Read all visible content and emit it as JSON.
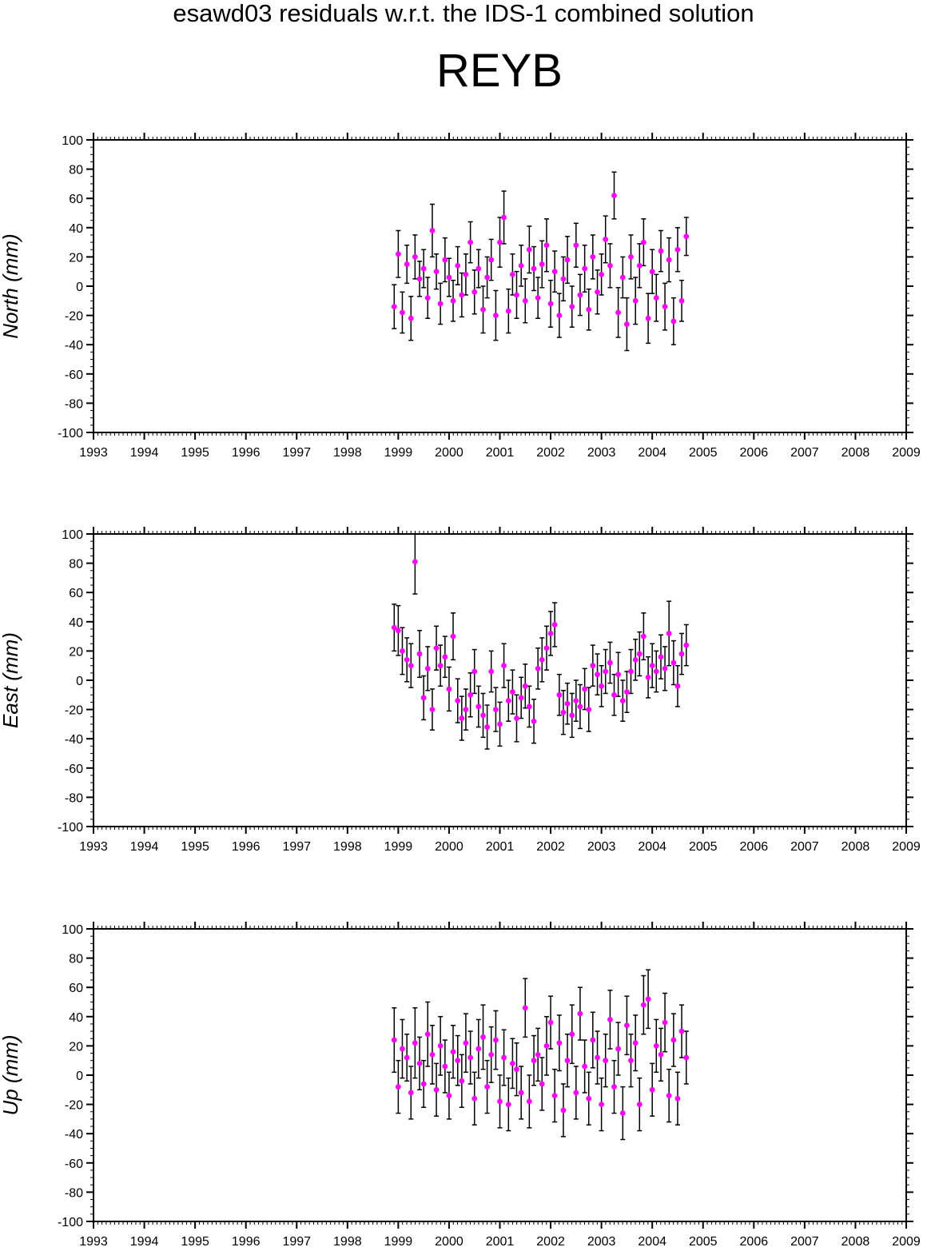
{
  "figure": {
    "suptitle": "esawd03 residuals w.r.t. the IDS-1 combined solution",
    "station": "REYB"
  },
  "colors": {
    "point": "#ff00ff",
    "errorbar": "#000000",
    "axis": "#000000",
    "background": "#ffffff"
  },
  "chart_data": [
    {
      "type": "scatter",
      "panel": "north",
      "title": "",
      "xlabel": "",
      "ylabel": "North (mm)",
      "xlim": [
        1993,
        2009
      ],
      "ylim": [
        -100,
        100
      ],
      "x_ticks": [
        1993,
        1994,
        1995,
        1996,
        1997,
        1998,
        1999,
        2000,
        2001,
        2002,
        2003,
        2004,
        2005,
        2006,
        2007,
        2008,
        2009
      ],
      "y_ticks": [
        100,
        80,
        60,
        40,
        20,
        0,
        -20,
        -40,
        -60,
        -80,
        -100
      ],
      "grid": false,
      "error_bars": true,
      "x": [
        1998.92,
        1999.0,
        1999.08,
        1999.17,
        1999.25,
        1999.33,
        1999.42,
        1999.5,
        1999.58,
        1999.67,
        1999.75,
        1999.83,
        1999.92,
        2000.0,
        2000.08,
        2000.17,
        2000.25,
        2000.33,
        2000.42,
        2000.5,
        2000.58,
        2000.67,
        2000.75,
        2000.83,
        2000.92,
        2001.0,
        2001.08,
        2001.17,
        2001.25,
        2001.33,
        2001.42,
        2001.5,
        2001.58,
        2001.67,
        2001.75,
        2001.83,
        2001.92,
        2002.0,
        2002.08,
        2002.17,
        2002.25,
        2002.33,
        2002.42,
        2002.5,
        2002.58,
        2002.67,
        2002.75,
        2002.83,
        2002.92,
        2003.0,
        2003.08,
        2003.17,
        2003.25,
        2003.33,
        2003.42,
        2003.5,
        2003.58,
        2003.67,
        2003.75,
        2003.83,
        2003.92,
        2004.0,
        2004.08,
        2004.17,
        2004.25,
        2004.33,
        2004.42,
        2004.5,
        2004.58,
        2004.67
      ],
      "y": [
        -14,
        22,
        -18,
        15,
        -22,
        20,
        5,
        12,
        -8,
        38,
        10,
        -12,
        18,
        6,
        -10,
        14,
        -6,
        8,
        30,
        -4,
        12,
        -16,
        6,
        18,
        -20,
        30,
        47,
        -17,
        8,
        -6,
        14,
        -10,
        25,
        12,
        -8,
        15,
        28,
        -12,
        10,
        -20,
        5,
        18,
        -14,
        28,
        -6,
        12,
        -16,
        20,
        -4,
        8,
        32,
        14,
        62,
        -18,
        6,
        -26,
        20,
        -10,
        14,
        30,
        -22,
        10,
        -8,
        24,
        -14,
        18,
        -24,
        25,
        -10,
        34
      ],
      "err": [
        15,
        16,
        14,
        13,
        15,
        15,
        12,
        13,
        14,
        18,
        12,
        14,
        15,
        13,
        14,
        13,
        15,
        14,
        14,
        15,
        13,
        16,
        14,
        14,
        17,
        17,
        18,
        15,
        14,
        16,
        14,
        15,
        16,
        15,
        14,
        16,
        18,
        16,
        14,
        15,
        15,
        16,
        14,
        15,
        14,
        16,
        14,
        15,
        15,
        14,
        16,
        15,
        16,
        17,
        14,
        18,
        15,
        16,
        15,
        16,
        17,
        15,
        16,
        14,
        16,
        15,
        16,
        15,
        14,
        13
      ]
    },
    {
      "type": "scatter",
      "panel": "east",
      "title": "",
      "xlabel": "",
      "ylabel": "East (mm)",
      "xlim": [
        1993,
        2009
      ],
      "ylim": [
        -100,
        100
      ],
      "x_ticks": [
        1993,
        1994,
        1995,
        1996,
        1997,
        1998,
        1999,
        2000,
        2001,
        2002,
        2003,
        2004,
        2005,
        2006,
        2007,
        2008,
        2009
      ],
      "y_ticks": [
        100,
        80,
        60,
        40,
        20,
        0,
        -20,
        -40,
        -60,
        -80,
        -100
      ],
      "grid": false,
      "error_bars": true,
      "x": [
        1998.92,
        1999.0,
        1999.08,
        1999.17,
        1999.25,
        1999.33,
        1999.42,
        1999.5,
        1999.58,
        1999.67,
        1999.75,
        1999.83,
        1999.92,
        2000.0,
        2000.08,
        2000.17,
        2000.25,
        2000.33,
        2000.42,
        2000.5,
        2000.58,
        2000.67,
        2000.75,
        2000.83,
        2000.92,
        2001.0,
        2001.08,
        2001.17,
        2001.25,
        2001.33,
        2001.42,
        2001.5,
        2001.58,
        2001.67,
        2001.75,
        2001.83,
        2001.92,
        2002.0,
        2002.08,
        2002.17,
        2002.25,
        2002.33,
        2002.42,
        2002.5,
        2002.58,
        2002.67,
        2002.75,
        2002.83,
        2002.92,
        2003.0,
        2003.08,
        2003.17,
        2003.25,
        2003.33,
        2003.42,
        2003.5,
        2003.58,
        2003.67,
        2003.75,
        2003.83,
        2003.92,
        2004.0,
        2004.08,
        2004.17,
        2004.25,
        2004.33,
        2004.42,
        2004.5,
        2004.58,
        2004.67
      ],
      "y": [
        36,
        34,
        20,
        14,
        10,
        81,
        18,
        -12,
        8,
        -20,
        22,
        10,
        16,
        -6,
        30,
        -14,
        -26,
        -20,
        -10,
        6,
        -18,
        -24,
        -32,
        6,
        -20,
        -30,
        10,
        -14,
        -8,
        -26,
        -12,
        -4,
        -18,
        -28,
        8,
        14,
        22,
        32,
        38,
        -10,
        -22,
        -16,
        -24,
        -14,
        -18,
        -6,
        -20,
        10,
        4,
        -4,
        6,
        12,
        -10,
        4,
        -14,
        -8,
        6,
        14,
        18,
        30,
        2,
        10,
        6,
        16,
        8,
        32,
        12,
        -4,
        18,
        24
      ],
      "err": [
        16,
        17,
        16,
        15,
        15,
        22,
        16,
        15,
        15,
        14,
        15,
        14,
        14,
        15,
        16,
        15,
        15,
        14,
        15,
        15,
        14,
        15,
        15,
        14,
        15,
        15,
        15,
        14,
        15,
        16,
        14,
        15,
        14,
        15,
        14,
        15,
        15,
        15,
        15,
        14,
        15,
        14,
        15,
        14,
        15,
        14,
        15,
        14,
        14,
        14,
        15,
        14,
        14,
        15,
        14,
        14,
        15,
        14,
        15,
        16,
        14,
        15,
        14,
        15,
        15,
        22,
        15,
        14,
        14,
        14
      ]
    },
    {
      "type": "scatter",
      "panel": "up",
      "title": "",
      "xlabel": "",
      "ylabel": "Up (mm)",
      "xlim": [
        1993,
        2009
      ],
      "ylim": [
        -100,
        100
      ],
      "x_ticks": [
        1993,
        1994,
        1995,
        1996,
        1997,
        1998,
        1999,
        2000,
        2001,
        2002,
        2003,
        2004,
        2005,
        2006,
        2007,
        2008,
        2009
      ],
      "y_ticks": [
        100,
        80,
        60,
        40,
        20,
        0,
        -20,
        -40,
        -60,
        -80,
        -100
      ],
      "grid": false,
      "error_bars": true,
      "x": [
        1998.92,
        1999.0,
        1999.08,
        1999.17,
        1999.25,
        1999.33,
        1999.42,
        1999.5,
        1999.58,
        1999.67,
        1999.75,
        1999.83,
        1999.92,
        2000.0,
        2000.08,
        2000.17,
        2000.25,
        2000.33,
        2000.42,
        2000.5,
        2000.58,
        2000.67,
        2000.75,
        2000.83,
        2000.92,
        2001.0,
        2001.08,
        2001.17,
        2001.25,
        2001.33,
        2001.42,
        2001.5,
        2001.58,
        2001.67,
        2001.75,
        2001.83,
        2001.92,
        2002.0,
        2002.08,
        2002.17,
        2002.25,
        2002.33,
        2002.42,
        2002.5,
        2002.58,
        2002.67,
        2002.75,
        2002.83,
        2002.92,
        2003.0,
        2003.08,
        2003.17,
        2003.25,
        2003.33,
        2003.42,
        2003.5,
        2003.58,
        2003.67,
        2003.75,
        2003.83,
        2003.92,
        2004.0,
        2004.08,
        2004.17,
        2004.25,
        2004.33,
        2004.42,
        2004.5,
        2004.58,
        2004.67
      ],
      "y": [
        24,
        -8,
        18,
        12,
        -12,
        22,
        8,
        -6,
        28,
        14,
        -10,
        20,
        6,
        -14,
        16,
        10,
        -4,
        22,
        12,
        -16,
        18,
        26,
        -8,
        14,
        24,
        -18,
        12,
        -20,
        8,
        4,
        -12,
        46,
        -18,
        10,
        14,
        -6,
        20,
        36,
        -14,
        22,
        -24,
        10,
        28,
        -12,
        42,
        6,
        -16,
        24,
        12,
        -20,
        10,
        38,
        -8,
        18,
        -26,
        34,
        10,
        22,
        -20,
        48,
        52,
        -10,
        20,
        14,
        36,
        -14,
        24,
        -16,
        30,
        12
      ],
      "err": [
        22,
        18,
        20,
        16,
        18,
        24,
        18,
        16,
        22,
        20,
        18,
        20,
        18,
        16,
        18,
        17,
        18,
        20,
        18,
        18,
        20,
        22,
        18,
        19,
        20,
        18,
        19,
        18,
        17,
        18,
        18,
        20,
        18,
        17,
        18,
        18,
        20,
        18,
        18,
        19,
        18,
        18,
        20,
        18,
        18,
        18,
        18,
        19,
        18,
        18,
        18,
        20,
        18,
        18,
        18,
        20,
        18,
        19,
        18,
        20,
        20,
        18,
        18,
        18,
        20,
        18,
        18,
        18,
        18,
        18
      ]
    }
  ]
}
